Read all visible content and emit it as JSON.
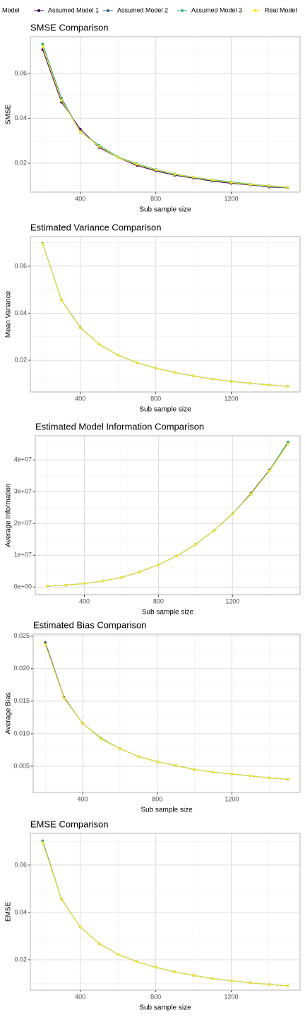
{
  "chart_data": [
    {
      "type": "line",
      "title": "SMSE Comparison",
      "legend_title": "Model",
      "xlabel": "Sub sample size",
      "ylabel": "SMSE",
      "x": [
        200,
        300,
        400,
        500,
        600,
        700,
        800,
        900,
        1000,
        1100,
        1200,
        1300,
        1400,
        1500
      ],
      "xlim": [
        135,
        1565
      ],
      "xticks": [
        400,
        800,
        1200
      ],
      "xminor": [
        200,
        600,
        1000,
        1400
      ],
      "ylim": [
        0.0071,
        0.0764
      ],
      "yticks": [
        0.02,
        0.04,
        0.06
      ],
      "yminor": [
        0.01,
        0.03,
        0.05,
        0.07
      ],
      "grid": true,
      "series": [
        {
          "name": "Assumed Model 1",
          "color": "#440154",
          "values": [
            0.0707,
            0.0472,
            0.0352,
            0.027,
            0.0225,
            0.019,
            0.0165,
            0.0146,
            0.0133,
            0.012,
            0.011,
            0.0103,
            0.0094,
            0.009
          ]
        },
        {
          "name": "Assumed Model 2",
          "color": "#31688e",
          "values": [
            0.073,
            0.049,
            0.034,
            0.0275,
            0.0225,
            0.0195,
            0.0168,
            0.0148,
            0.0135,
            0.0122,
            0.0113,
            0.0104,
            0.0096,
            0.009
          ]
        },
        {
          "name": "Assumed Model 3",
          "color": "#35b779",
          "values": [
            0.0732,
            0.0485,
            0.0338,
            0.028,
            0.0228,
            0.0198,
            0.0172,
            0.0152,
            0.0138,
            0.0126,
            0.0117,
            0.0107,
            0.0099,
            0.0093
          ]
        },
        {
          "name": "Real Model",
          "color": "#fde725",
          "values": [
            0.072,
            0.048,
            0.034,
            0.0275,
            0.0225,
            0.0195,
            0.017,
            0.015,
            0.0137,
            0.0124,
            0.0114,
            0.0105,
            0.0098,
            0.0092
          ]
        }
      ]
    },
    {
      "type": "line",
      "title": "Estimated Variance Comparison",
      "xlabel": "Sub sample size",
      "ylabel": "Mean Variance",
      "x": [
        200,
        300,
        400,
        500,
        600,
        700,
        800,
        900,
        1000,
        1100,
        1200,
        1300,
        1400,
        1500
      ],
      "xlim": [
        135,
        1565
      ],
      "xticks": [
        400,
        800,
        1200
      ],
      "xminor": [
        200,
        600,
        1000,
        1400
      ],
      "ylim": [
        0.0065,
        0.0726
      ],
      "yticks": [
        0.02,
        0.04,
        0.06
      ],
      "yminor": [
        0.01,
        0.03,
        0.05,
        0.07
      ],
      "grid": true,
      "series": [
        {
          "name": "Assumed Model 1",
          "color": "#440154",
          "values": [
            0.0696,
            0.0456,
            0.0339,
            0.0268,
            0.0222,
            0.019,
            0.0166,
            0.0148,
            0.0133,
            0.012,
            0.011,
            0.0102,
            0.0095,
            0.0089
          ]
        },
        {
          "name": "Assumed Model 2",
          "color": "#31688e",
          "values": [
            0.0697,
            0.0456,
            0.0338,
            0.0268,
            0.0222,
            0.019,
            0.0166,
            0.0148,
            0.0133,
            0.012,
            0.011,
            0.0102,
            0.0095,
            0.0089
          ]
        },
        {
          "name": "Assumed Model 3",
          "color": "#35b779",
          "values": [
            0.0697,
            0.0455,
            0.0338,
            0.0268,
            0.0222,
            0.019,
            0.0166,
            0.0148,
            0.0133,
            0.012,
            0.011,
            0.0102,
            0.0095,
            0.0089
          ]
        },
        {
          "name": "Real Model",
          "color": "#fde725",
          "values": [
            0.0695,
            0.0455,
            0.0338,
            0.0268,
            0.0222,
            0.019,
            0.0166,
            0.0148,
            0.0133,
            0.012,
            0.011,
            0.0102,
            0.0095,
            0.0089
          ]
        }
      ]
    },
    {
      "type": "line",
      "title": "Estimated Model Information Comparison",
      "xlabel": "Sub sample size",
      "ylabel": "Average Information",
      "x": [
        200,
        300,
        400,
        500,
        600,
        700,
        800,
        900,
        1000,
        1100,
        1200,
        1300,
        1400,
        1500
      ],
      "xlim": [
        135,
        1565
      ],
      "xticks": [
        400,
        800,
        1200
      ],
      "xminor": [
        200,
        600,
        1000,
        1400
      ],
      "ylim": [
        -2400000,
        47600000
      ],
      "yticks": [
        {
          "value": 0,
          "label": "0e+00"
        },
        {
          "value": 10000000,
          "label": "1e+07"
        },
        {
          "value": 20000000,
          "label": "2e+07"
        },
        {
          "value": 30000000,
          "label": "3e+07"
        },
        {
          "value": 40000000,
          "label": "4e+07"
        }
      ],
      "yminor": [
        5000000,
        15000000,
        25000000,
        35000000,
        45000000
      ],
      "grid": true,
      "series": [
        {
          "name": "Assumed Model 1",
          "color": "#440154",
          "values": [
            300000,
            600000,
            1100000,
            1900000,
            3000000,
            4800000,
            7000000,
            9800000,
            13400000,
            17800000,
            23000000,
            29500000,
            36800000,
            45500000
          ]
        },
        {
          "name": "Assumed Model 2",
          "color": "#31688e",
          "values": [
            300000,
            600000,
            1100000,
            1900000,
            3000000,
            4800000,
            7000000,
            9800000,
            13400000,
            17800000,
            23100000,
            29300000,
            36600000,
            45600000
          ]
        },
        {
          "name": "Assumed Model 3",
          "color": "#35b779",
          "values": [
            300000,
            600000,
            1100000,
            1900000,
            3000000,
            4800000,
            7000000,
            9800000,
            13400000,
            17800000,
            23000000,
            29200000,
            36700000,
            45700000
          ]
        },
        {
          "name": "Real Model",
          "color": "#fde725",
          "values": [
            300000,
            600000,
            1100000,
            1900000,
            3000000,
            4800000,
            7000000,
            9800000,
            13400000,
            17800000,
            23000000,
            29300000,
            36500000,
            45000000
          ]
        }
      ]
    },
    {
      "type": "line",
      "title": "Estimated Bias Comparison",
      "xlabel": "Sub sample size",
      "ylabel": "Average Bias",
      "x": [
        200,
        300,
        400,
        500,
        600,
        700,
        800,
        900,
        1000,
        1100,
        1200,
        1300,
        1400,
        1500
      ],
      "xlim": [
        135,
        1565
      ],
      "xticks": [
        400,
        800,
        1200
      ],
      "xminor": [
        200,
        600,
        1000,
        1400
      ],
      "ylim": [
        0.00098,
        0.0253
      ],
      "yticks": [
        0.005,
        {
          "value": 0.01,
          "label": "0.010"
        },
        0.015,
        {
          "value": 0.02,
          "label": "0.020"
        },
        0.025
      ],
      "yminor": [
        0.0075,
        0.0125,
        0.0175,
        0.0225
      ],
      "grid": true,
      "series": [
        {
          "name": "Assumed Model 1",
          "color": "#440154",
          "values": [
            0.024,
            0.0156,
            0.0116,
            0.0092,
            0.0077,
            0.0065,
            0.0057,
            0.0051,
            0.0045,
            0.0041,
            0.0038,
            0.0035,
            0.0032,
            0.003
          ]
        },
        {
          "name": "Assumed Model 2",
          "color": "#31688e",
          "values": [
            0.0239,
            0.0155,
            0.0116,
            0.0092,
            0.0077,
            0.0065,
            0.0057,
            0.0051,
            0.0045,
            0.0041,
            0.0038,
            0.0035,
            0.0032,
            0.003
          ]
        },
        {
          "name": "Assumed Model 3",
          "color": "#35b779",
          "values": [
            0.0238,
            0.0155,
            0.0116,
            0.0093,
            0.0077,
            0.0065,
            0.0057,
            0.0051,
            0.0045,
            0.0041,
            0.0038,
            0.0035,
            0.0032,
            0.003
          ]
        },
        {
          "name": "Real Model",
          "color": "#fde725",
          "values": [
            0.0237,
            0.0155,
            0.0116,
            0.0092,
            0.0077,
            0.0065,
            0.0057,
            0.0051,
            0.0045,
            0.0041,
            0.0038,
            0.0035,
            0.0032,
            0.003
          ]
        }
      ]
    },
    {
      "type": "line",
      "title": "EMSE Comparison",
      "xlabel": "Sub sample size",
      "ylabel": "EMSE",
      "x": [
        200,
        300,
        400,
        500,
        600,
        700,
        800,
        900,
        1000,
        1100,
        1200,
        1300,
        1400,
        1500
      ],
      "xlim": [
        135,
        1565
      ],
      "xticks": [
        400,
        800,
        1200
      ],
      "xminor": [
        200,
        600,
        1000,
        1400
      ],
      "ylim": [
        0.00716,
        0.0734
      ],
      "yticks": [
        0.02,
        0.04,
        0.06
      ],
      "yminor": [
        0.01,
        0.03,
        0.05,
        0.07
      ],
      "grid": true,
      "series": [
        {
          "name": "Assumed Model 1",
          "color": "#440154",
          "values": [
            0.0701,
            0.0456,
            0.0338,
            0.0268,
            0.0223,
            0.0192,
            0.0168,
            0.0149,
            0.0134,
            0.0121,
            0.0111,
            0.0103,
            0.0096,
            0.009
          ]
        },
        {
          "name": "Assumed Model 2",
          "color": "#31688e",
          "values": [
            0.0703,
            0.0456,
            0.0338,
            0.0268,
            0.0223,
            0.0192,
            0.0168,
            0.0149,
            0.0134,
            0.0121,
            0.0111,
            0.0103,
            0.0096,
            0.009
          ]
        },
        {
          "name": "Assumed Model 3",
          "color": "#35b779",
          "values": [
            0.07,
            0.0455,
            0.0338,
            0.0268,
            0.0223,
            0.0192,
            0.0168,
            0.0149,
            0.0134,
            0.0121,
            0.0111,
            0.0103,
            0.0096,
            0.009
          ]
        },
        {
          "name": "Real Model",
          "color": "#fde725",
          "values": [
            0.0695,
            0.0455,
            0.0338,
            0.0268,
            0.0223,
            0.0192,
            0.0168,
            0.0149,
            0.0134,
            0.0121,
            0.0111,
            0.0103,
            0.0096,
            0.009
          ]
        }
      ]
    }
  ]
}
